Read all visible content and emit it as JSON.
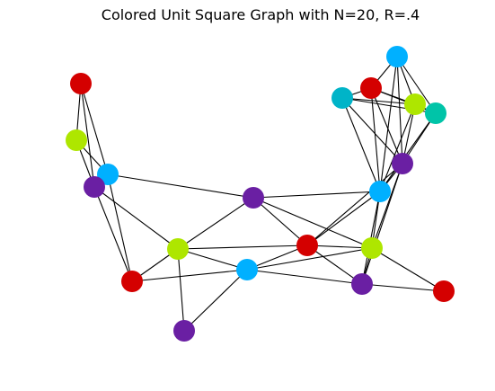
{
  "figure": {
    "title": "Colored Unit Square Graph with N=20, R=.4"
  },
  "palette": {
    "red": "#d40000",
    "lime": "#aee600",
    "sky": "#00b0ff",
    "purple": "#6a1fa3",
    "cyan": "#00b4c8",
    "teal": "#00c4a8",
    "edge": "#000000"
  },
  "graph": {
    "node_count": 20,
    "radius": ".4",
    "nodes": [
      {
        "id": 0,
        "color": "red"
      },
      {
        "id": 1,
        "color": "lime"
      },
      {
        "id": 2,
        "color": "sky"
      },
      {
        "id": 3,
        "color": "purple"
      },
      {
        "id": 4,
        "color": "purple"
      },
      {
        "id": 5,
        "color": "lime"
      },
      {
        "id": 6,
        "color": "red"
      },
      {
        "id": 7,
        "color": "purple"
      },
      {
        "id": 8,
        "color": "sky"
      },
      {
        "id": 9,
        "color": "red"
      },
      {
        "id": 10,
        "color": "lime"
      },
      {
        "id": 11,
        "color": "purple"
      },
      {
        "id": 12,
        "color": "red"
      },
      {
        "id": 13,
        "color": "sky"
      },
      {
        "id": 14,
        "color": "purple"
      },
      {
        "id": 15,
        "color": "sky"
      },
      {
        "id": 16,
        "color": "cyan"
      },
      {
        "id": 17,
        "color": "red"
      },
      {
        "id": 18,
        "color": "lime"
      },
      {
        "id": 19,
        "color": "teal"
      }
    ],
    "edges": [
      [
        0,
        1
      ],
      [
        0,
        2
      ],
      [
        0,
        3
      ],
      [
        1,
        2
      ],
      [
        1,
        3
      ],
      [
        2,
        3
      ],
      [
        2,
        6
      ],
      [
        2,
        4
      ],
      [
        3,
        6
      ],
      [
        3,
        5
      ],
      [
        4,
        5
      ],
      [
        4,
        9
      ],
      [
        4,
        13
      ],
      [
        4,
        10
      ],
      [
        5,
        6
      ],
      [
        5,
        7
      ],
      [
        5,
        8
      ],
      [
        5,
        9
      ],
      [
        6,
        8
      ],
      [
        7,
        8
      ],
      [
        8,
        9
      ],
      [
        8,
        11
      ],
      [
        8,
        10
      ],
      [
        9,
        10
      ],
      [
        9,
        11
      ],
      [
        9,
        13
      ],
      [
        9,
        14
      ],
      [
        10,
        11
      ],
      [
        10,
        12
      ],
      [
        10,
        13
      ],
      [
        10,
        14
      ],
      [
        11,
        12
      ],
      [
        11,
        13
      ],
      [
        11,
        14
      ],
      [
        13,
        14
      ],
      [
        13,
        15
      ],
      [
        13,
        16
      ],
      [
        13,
        17
      ],
      [
        13,
        18
      ],
      [
        13,
        19
      ],
      [
        14,
        15
      ],
      [
        14,
        16
      ],
      [
        14,
        17
      ],
      [
        14,
        18
      ],
      [
        14,
        19
      ],
      [
        15,
        17
      ],
      [
        15,
        18
      ],
      [
        15,
        19
      ],
      [
        16,
        17
      ],
      [
        16,
        18
      ],
      [
        16,
        19
      ],
      [
        17,
        18
      ],
      [
        17,
        19
      ],
      [
        18,
        19
      ]
    ]
  }
}
